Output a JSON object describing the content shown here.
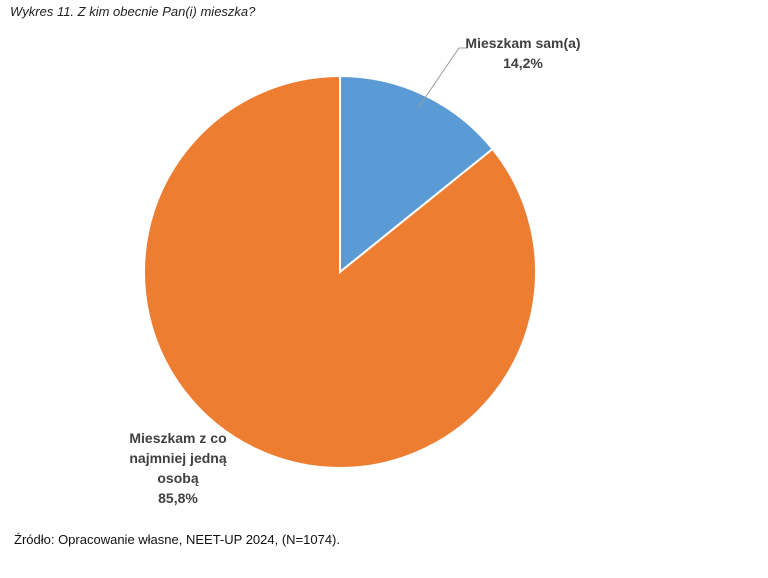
{
  "title": "Wykres 11. Z kim obecnie Pan(i) mieszka?",
  "source": "Źródło: Opracowanie własne, NEET-UP 2024, (N=1074).",
  "chart_data": {
    "type": "pie",
    "title": "Wykres 11. Z kim obecnie Pan(i) mieszka?",
    "start_angle": "12 o'clock, clockwise",
    "slices": [
      {
        "label_lines": [
          "Mieszkam sam(a)"
        ],
        "value": 14.2,
        "value_label": "14,2%",
        "color": "#5B9BD5"
      },
      {
        "label_lines": [
          "Mieszkam z co",
          "najmniej jedną",
          "osobą"
        ],
        "value": 85.8,
        "value_label": "85,8%",
        "color": "#ED7D31"
      }
    ]
  }
}
